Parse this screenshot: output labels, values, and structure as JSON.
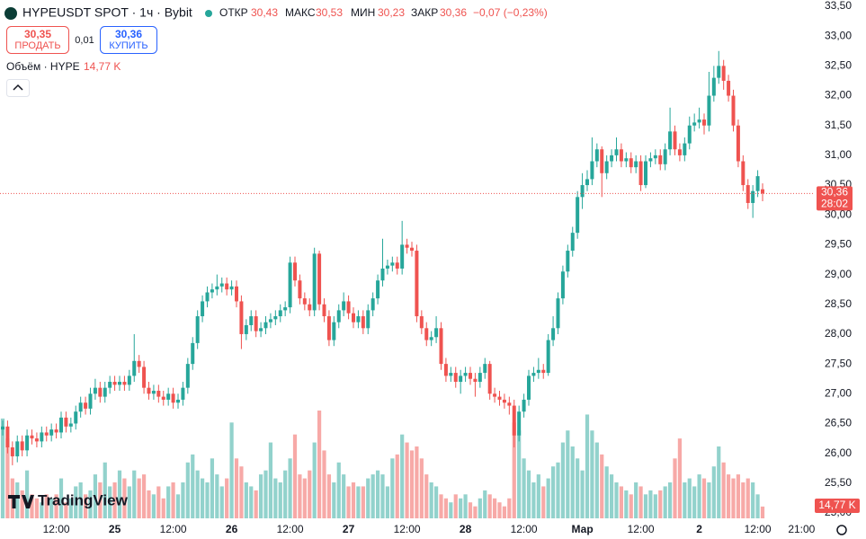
{
  "chart_data": {
    "type": "candlestick",
    "legend": {
      "title": "HYPEUSDT SPOT · 1ч · Bybit",
      "open_label": "ОТКР",
      "open": "30,43",
      "high_label": "МАКС",
      "high": "30,53",
      "low_label": "МИН",
      "low": "30,23",
      "close_label": "ЗАКР",
      "close": "30,36",
      "change": "−0,07 (−0,23%)"
    },
    "trade": {
      "sell_price": "30,35",
      "sell_label": "ПРОДАТЬ",
      "spread": "0,01",
      "buy_price": "30,36",
      "buy_label": "КУПИТЬ"
    },
    "volume_legend": {
      "label": "Объём · HYPE",
      "value": "14,77 K"
    },
    "last_price_label": "30,36",
    "countdown": "28:02",
    "last_volume_label": "14,77 K",
    "watermark": "TradingView",
    "up_color": "#26a69a",
    "down_color": "#ef5350",
    "grid": false,
    "ylim": [
      25.0,
      33.5
    ],
    "yticks": [
      {
        "value": 33.5,
        "label": "33,50"
      },
      {
        "value": 33.0,
        "label": "33,00"
      },
      {
        "value": 32.5,
        "label": "32,50"
      },
      {
        "value": 32.0,
        "label": "32,00"
      },
      {
        "value": 31.5,
        "label": "31,50"
      },
      {
        "value": 31.0,
        "label": "31,00"
      },
      {
        "value": 30.5,
        "label": "30,50"
      },
      {
        "value": 30.0,
        "label": "30,00"
      },
      {
        "value": 29.5,
        "label": "29,50"
      },
      {
        "value": 29.0,
        "label": "29,00"
      },
      {
        "value": 28.5,
        "label": "28,50"
      },
      {
        "value": 28.0,
        "label": "28,00"
      },
      {
        "value": 27.5,
        "label": "27,50"
      },
      {
        "value": 27.0,
        "label": "27,00"
      },
      {
        "value": 26.5,
        "label": "26,50"
      },
      {
        "value": 26.0,
        "label": "26,00"
      },
      {
        "value": 25.5,
        "label": "25,50"
      },
      {
        "value": 25.0,
        "label": "25,00"
      }
    ],
    "xlabels": [
      "12:00",
      "25",
      "12:00",
      "26",
      "12:00",
      "27",
      "12:00",
      "28",
      "12:00",
      "Мар",
      "12:00",
      "2",
      "12:00",
      "21:00"
    ],
    "open": [
      26.4,
      26.45,
      26.1,
      25.95,
      26.2,
      26.05,
      26.3,
      26.25,
      26.2,
      26.35,
      26.3,
      26.4,
      26.35,
      26.6,
      26.45,
      26.5,
      26.7,
      26.85,
      26.75,
      27.0,
      27.1,
      26.95,
      27.1,
      27.2,
      27.15,
      27.2,
      27.15,
      27.3,
      27.55,
      27.45,
      27.1,
      27.0,
      27.05,
      26.95,
      26.9,
      27.0,
      26.85,
      26.9,
      27.1,
      27.5,
      27.85,
      28.3,
      28.55,
      28.7,
      28.75,
      28.8,
      28.85,
      28.75,
      28.8,
      28.55,
      28.0,
      28.15,
      28.3,
      28.05,
      28.1,
      28.2,
      28.25,
      28.3,
      28.4,
      28.45,
      29.2,
      28.9,
      28.6,
      28.5,
      28.4,
      29.35,
      28.5,
      28.3,
      27.9,
      28.2,
      28.4,
      28.55,
      28.35,
      28.2,
      28.3,
      28.1,
      28.4,
      28.6,
      28.9,
      29.1,
      29.15,
      29.2,
      29.1,
      29.5,
      29.45,
      29.4,
      28.3,
      28.1,
      27.9,
      27.95,
      28.1,
      27.5,
      27.3,
      27.35,
      27.2,
      27.3,
      27.35,
      27.25,
      27.2,
      27.35,
      27.5,
      27.0,
      26.95,
      26.9,
      26.85,
      26.8,
      26.3,
      26.7,
      26.9,
      27.3,
      27.35,
      27.4,
      27.35,
      27.9,
      28.1,
      28.6,
      29.05,
      29.4,
      29.7,
      30.3,
      30.5,
      30.6,
      30.9,
      31.1,
      30.7,
      30.9,
      31.0,
      31.1,
      30.9,
      30.95,
      30.8,
      30.9,
      30.5,
      30.9,
      30.95,
      31.0,
      30.85,
      31.1,
      31.4,
      31.1,
      31.0,
      31.2,
      31.5,
      31.55,
      31.6,
      31.5,
      32.0,
      32.3,
      32.5,
      32.25,
      32.0,
      31.5,
      30.9,
      30.5,
      30.2,
      30.4,
      30.43
    ],
    "high": [
      26.55,
      26.55,
      26.2,
      26.3,
      26.3,
      26.4,
      26.4,
      26.35,
      26.45,
      26.45,
      26.5,
      26.5,
      26.7,
      26.7,
      26.6,
      26.8,
      26.95,
      26.95,
      27.1,
      27.25,
      27.2,
      27.2,
      27.3,
      27.3,
      27.3,
      27.3,
      27.4,
      28.0,
      27.65,
      27.55,
      27.2,
      27.15,
      27.15,
      27.05,
      27.1,
      27.1,
      27.0,
      27.2,
      27.6,
      27.95,
      28.4,
      28.65,
      28.8,
      28.85,
      29.0,
      28.95,
      28.95,
      28.9,
      28.9,
      28.65,
      28.25,
      28.4,
      28.4,
      28.2,
      28.3,
      28.35,
      28.4,
      28.5,
      28.55,
      29.3,
      29.3,
      29.0,
      28.7,
      28.6,
      29.45,
      29.4,
      28.6,
      28.4,
      28.3,
      28.5,
      28.7,
      28.65,
      28.45,
      28.4,
      28.4,
      28.5,
      28.7,
      29.0,
      29.6,
      29.25,
      29.3,
      29.3,
      29.9,
      29.6,
      29.55,
      29.5,
      28.4,
      28.2,
      28.05,
      28.3,
      28.2,
      27.6,
      27.45,
      27.45,
      27.4,
      27.45,
      27.45,
      27.35,
      27.45,
      27.6,
      27.55,
      27.1,
      27.05,
      27.0,
      26.95,
      26.9,
      26.8,
      27.0,
      27.4,
      27.45,
      27.6,
      27.5,
      28.0,
      28.3,
      28.7,
      29.15,
      29.5,
      29.8,
      30.4,
      30.7,
      30.75,
      31.3,
      31.2,
      31.15,
      31.0,
      31.1,
      31.3,
      31.2,
      31.05,
      31.05,
      31.0,
      31.0,
      31.0,
      31.05,
      31.1,
      31.1,
      31.2,
      31.8,
      31.5,
      31.2,
      31.3,
      31.65,
      31.7,
      31.8,
      31.7,
      32.4,
      32.5,
      32.75,
      32.6,
      32.35,
      32.1,
      31.6,
      31.0,
      30.6,
      30.5,
      30.75,
      30.53
    ],
    "low": [
      26.3,
      26.0,
      25.8,
      25.85,
      25.95,
      25.95,
      26.15,
      26.1,
      26.1,
      26.2,
      26.2,
      26.25,
      26.25,
      26.35,
      26.35,
      26.4,
      26.6,
      26.65,
      26.65,
      26.9,
      26.85,
      26.85,
      27.0,
      27.05,
      27.05,
      27.05,
      27.05,
      27.2,
      27.35,
      27.0,
      26.9,
      26.9,
      26.85,
      26.8,
      26.8,
      26.75,
      26.75,
      26.8,
      27.0,
      27.4,
      27.75,
      28.2,
      28.45,
      28.6,
      28.65,
      28.7,
      28.65,
      28.65,
      28.45,
      27.75,
      27.9,
      28.05,
      27.95,
      27.95,
      28.0,
      28.1,
      28.15,
      28.2,
      28.3,
      28.35,
      28.8,
      28.5,
      28.4,
      28.3,
      28.3,
      28.4,
      28.2,
      27.8,
      27.8,
      28.1,
      28.3,
      28.25,
      28.1,
      28.1,
      28.0,
      28.0,
      28.3,
      28.5,
      28.8,
      29.0,
      29.05,
      29.0,
      29.0,
      29.35,
      29.3,
      28.2,
      28.0,
      27.8,
      27.8,
      27.85,
      27.4,
      27.2,
      27.2,
      27.1,
      27.0,
      27.2,
      27.15,
      26.95,
      27.1,
      27.25,
      26.9,
      26.85,
      26.8,
      26.75,
      26.65,
      26.1,
      26.2,
      26.6,
      26.8,
      27.2,
      27.25,
      27.25,
      27.3,
      27.8,
      28.0,
      28.5,
      28.95,
      29.3,
      29.6,
      30.1,
      30.4,
      30.5,
      30.8,
      30.3,
      30.6,
      30.8,
      30.9,
      30.8,
      30.8,
      30.7,
      30.7,
      30.4,
      30.45,
      30.8,
      30.85,
      30.75,
      30.75,
      31.0,
      31.0,
      30.9,
      30.9,
      31.1,
      31.4,
      31.45,
      31.35,
      31.4,
      31.9,
      32.2,
      32.1,
      31.9,
      31.4,
      30.8,
      30.4,
      30.1,
      29.95,
      30.3,
      30.23
    ],
    "close": [
      26.45,
      26.1,
      25.95,
      26.2,
      26.05,
      26.3,
      26.25,
      26.2,
      26.35,
      26.3,
      26.4,
      26.35,
      26.6,
      26.45,
      26.5,
      26.7,
      26.85,
      26.75,
      27.0,
      27.1,
      26.95,
      27.1,
      27.2,
      27.15,
      27.2,
      27.15,
      27.3,
      27.55,
      27.45,
      27.1,
      27.0,
      27.05,
      26.95,
      26.9,
      27.0,
      26.85,
      26.9,
      27.1,
      27.5,
      27.85,
      28.3,
      28.55,
      28.7,
      28.75,
      28.8,
      28.85,
      28.75,
      28.8,
      28.55,
      28.0,
      28.15,
      28.3,
      28.05,
      28.1,
      28.2,
      28.25,
      28.3,
      28.4,
      28.45,
      29.2,
      28.9,
      28.6,
      28.5,
      28.4,
      29.35,
      28.5,
      28.3,
      27.9,
      28.2,
      28.4,
      28.55,
      28.35,
      28.2,
      28.3,
      28.1,
      28.4,
      28.6,
      28.9,
      29.1,
      29.15,
      29.2,
      29.1,
      29.5,
      29.45,
      29.4,
      28.3,
      28.1,
      27.9,
      27.95,
      28.1,
      27.5,
      27.3,
      27.35,
      27.2,
      27.3,
      27.35,
      27.25,
      27.2,
      27.35,
      27.5,
      27.0,
      26.95,
      26.9,
      26.85,
      26.8,
      26.3,
      26.7,
      26.9,
      27.3,
      27.35,
      27.4,
      27.35,
      27.9,
      28.1,
      28.6,
      29.05,
      29.4,
      29.7,
      30.3,
      30.5,
      30.6,
      30.9,
      31.1,
      30.7,
      30.9,
      31.0,
      31.1,
      30.9,
      30.95,
      30.8,
      30.9,
      30.5,
      30.9,
      30.95,
      31.0,
      30.85,
      31.1,
      31.4,
      31.1,
      31.0,
      31.2,
      31.5,
      31.55,
      31.6,
      31.5,
      32.0,
      32.3,
      32.5,
      32.25,
      32.0,
      31.5,
      30.9,
      30.5,
      30.2,
      30.4,
      30.65,
      30.36
    ],
    "volume": [
      125,
      100,
      50,
      45,
      35,
      60,
      30,
      25,
      20,
      30,
      25,
      30,
      50,
      20,
      25,
      40,
      45,
      30,
      35,
      55,
      45,
      70,
      40,
      45,
      60,
      50,
      40,
      60,
      50,
      55,
      35,
      30,
      40,
      25,
      40,
      45,
      30,
      45,
      70,
      80,
      60,
      50,
      45,
      75,
      55,
      40,
      50,
      120,
      75,
      65,
      45,
      40,
      35,
      55,
      60,
      95,
      50,
      45,
      60,
      75,
      105,
      55,
      50,
      60,
      95,
      135,
      85,
      55,
      45,
      70,
      55,
      40,
      45,
      40,
      40,
      50,
      55,
      60,
      55,
      40,
      75,
      80,
      105,
      95,
      85,
      90,
      75,
      55,
      45,
      40,
      30,
      25,
      20,
      30,
      25,
      30,
      20,
      15,
      25,
      35,
      30,
      25,
      20,
      15,
      25,
      120,
      110,
      75,
      60,
      45,
      55,
      40,
      50,
      65,
      70,
      95,
      110,
      90,
      75,
      60,
      130,
      110,
      95,
      80,
      65,
      55,
      45,
      40,
      35,
      30,
      45,
      40,
      30,
      35,
      30,
      35,
      40,
      45,
      75,
      100,
      45,
      50,
      40,
      55,
      50,
      45,
      65,
      90,
      70,
      55,
      50,
      55,
      45,
      50,
      45,
      30,
      14.77
    ]
  }
}
